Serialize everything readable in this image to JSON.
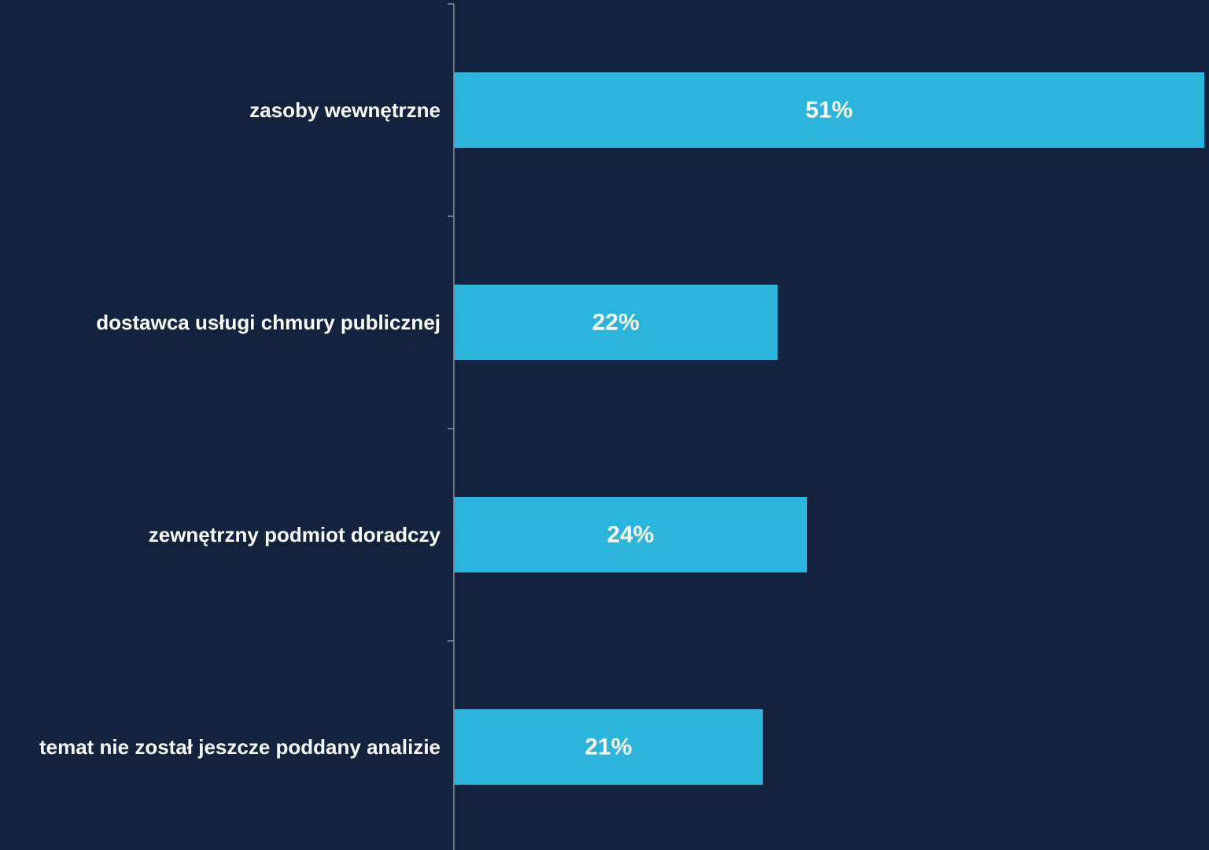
{
  "chart_data": {
    "type": "bar",
    "orientation": "horizontal",
    "categories": [
      "zasoby wewnętrzne",
      "dostawca usługi chmury publicznej",
      "zewnętrzny podmiot doradczy",
      "temat nie został jeszcze poddany analizie"
    ],
    "values": [
      51,
      22,
      24,
      21
    ],
    "value_labels": [
      "51%",
      "22%",
      "24%",
      "21%"
    ],
    "color": "#2bb5dc"
  }
}
